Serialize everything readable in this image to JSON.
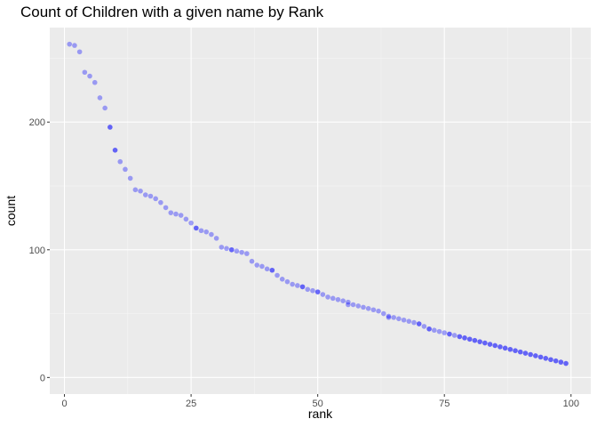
{
  "colors": {
    "panel": "#ebebeb",
    "grid_major": "#ffffff",
    "grid_minor": "#f5f5f5",
    "point": "#0000ff",
    "tick": "#333333"
  },
  "chart_data": {
    "type": "scatter",
    "title": "Count of Children with a given name by Rank",
    "xlabel": "rank",
    "ylabel": "count",
    "xlim": [
      -2.9,
      103.9
    ],
    "ylim": [
      -13,
      274
    ],
    "x_ticks": [
      0,
      25,
      50,
      75,
      100
    ],
    "x_tick_labels": [
      "0",
      "25",
      "50",
      "75",
      "100"
    ],
    "y_ticks": [
      0,
      100,
      200
    ],
    "y_tick_labels": [
      "0",
      "100",
      "200"
    ],
    "grid": true,
    "point_alpha": 0.35,
    "x": [
      1,
      2,
      3,
      4,
      5,
      6,
      7,
      8,
      9,
      9,
      10,
      10,
      11,
      12,
      13,
      14,
      15,
      16,
      17,
      18,
      19,
      20,
      21,
      22,
      23,
      24,
      25,
      26,
      26,
      27,
      28,
      29,
      30,
      31,
      32,
      33,
      33,
      34,
      35,
      36,
      37,
      38,
      39,
      40,
      41,
      41,
      42,
      43,
      44,
      45,
      46,
      47,
      47,
      48,
      49,
      50,
      50,
      51,
      52,
      53,
      54,
      55,
      56,
      56,
      57,
      58,
      59,
      60,
      61,
      62,
      63,
      64,
      64,
      65,
      66,
      67,
      68,
      69,
      70,
      70,
      71,
      72,
      72,
      73,
      74,
      75,
      76,
      76,
      77,
      78,
      78,
      79,
      79,
      80,
      80,
      81,
      81,
      82,
      82,
      83,
      83,
      84,
      84,
      85,
      85,
      86,
      86,
      87,
      87,
      88,
      88,
      89,
      89,
      90,
      90,
      91,
      91,
      92,
      92,
      93,
      93,
      94,
      94,
      95,
      95,
      96,
      96,
      97,
      97,
      98,
      98,
      99,
      99
    ],
    "y": [
      261,
      260,
      255,
      239,
      236,
      231,
      219,
      211,
      196,
      196,
      178,
      178,
      169,
      163,
      156,
      147,
      146,
      143,
      142,
      140,
      137,
      133,
      129,
      128,
      127,
      124,
      121,
      117,
      117,
      115,
      114,
      112,
      109,
      102,
      101,
      100,
      100,
      99,
      98,
      97,
      91,
      88,
      87,
      85,
      84,
      84,
      80,
      77,
      75,
      73,
      72,
      71,
      71,
      69,
      68,
      67,
      67,
      65,
      63,
      62,
      61,
      60,
      59,
      57,
      57,
      56,
      55,
      54,
      53,
      52,
      50,
      48,
      47,
      47,
      46,
      45,
      44,
      43,
      42,
      42,
      40,
      38,
      38,
      37,
      36,
      35,
      34,
      34,
      33,
      32,
      32,
      31,
      31,
      30,
      30,
      29,
      29,
      28,
      28,
      27,
      27,
      26,
      26,
      25,
      25,
      24,
      24,
      23,
      23,
      22,
      22,
      21,
      21,
      20,
      20,
      19,
      19,
      18,
      18,
      17,
      17,
      16,
      16,
      15,
      15,
      14,
      14,
      13,
      13,
      12,
      12,
      11,
      11
    ]
  }
}
